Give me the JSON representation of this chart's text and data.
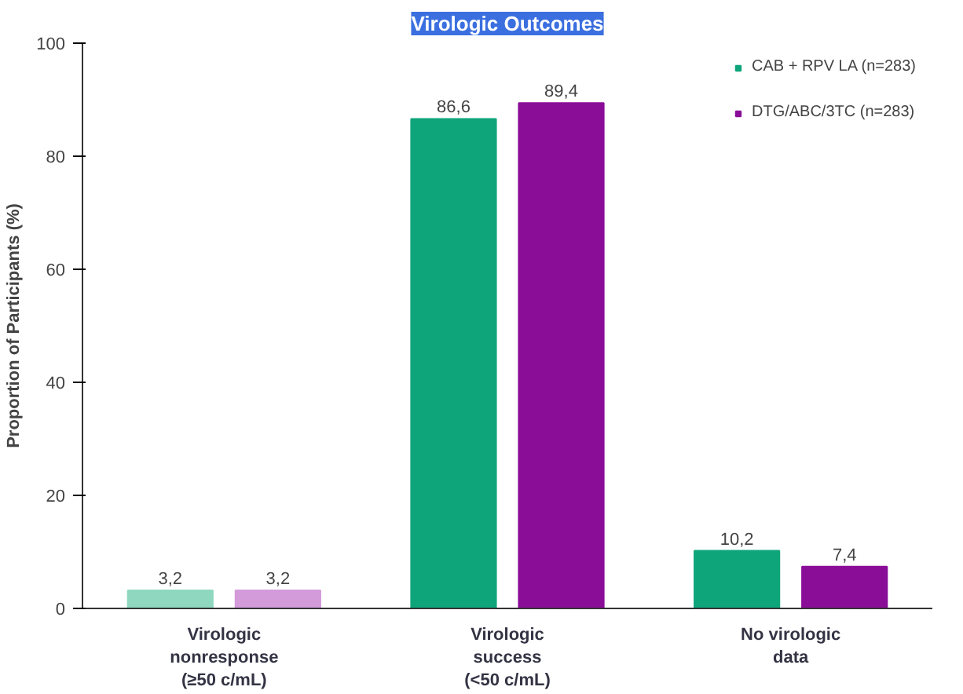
{
  "chart_data": {
    "type": "bar",
    "title": "Virologic Outcomes",
    "ylabel": "Proportion of Participants (%)",
    "categories": [
      "Virologic\nnonresponse\n(≥50 c/mL)",
      "Virologic\nsuccess\n(<50 c/mL)",
      "No virologic\ndata"
    ],
    "series": [
      {
        "name": "CAB + RPV LA (n=283)",
        "color": "#0fa57a",
        "colors": [
          "#8fd8bf",
          "#0fa57a",
          "#0fa57a"
        ],
        "values": [
          3.2,
          86.6,
          10.2
        ],
        "value_labels": [
          "3,2",
          "86,6",
          "10,2"
        ]
      },
      {
        "name": "DTG/ABC/3TC (n=283)",
        "color": "#8a0d98",
        "colors": [
          "#d39bd9",
          "#8a0d98",
          "#8a0d98"
        ],
        "values": [
          3.2,
          89.4,
          7.4
        ],
        "value_labels": [
          "3,2",
          "89,4",
          "7,4"
        ]
      }
    ],
    "ylim": [
      0,
      100
    ],
    "yticks": [
      0,
      20,
      40,
      60,
      80,
      100
    ],
    "grid": false,
    "legend": "top right"
  }
}
